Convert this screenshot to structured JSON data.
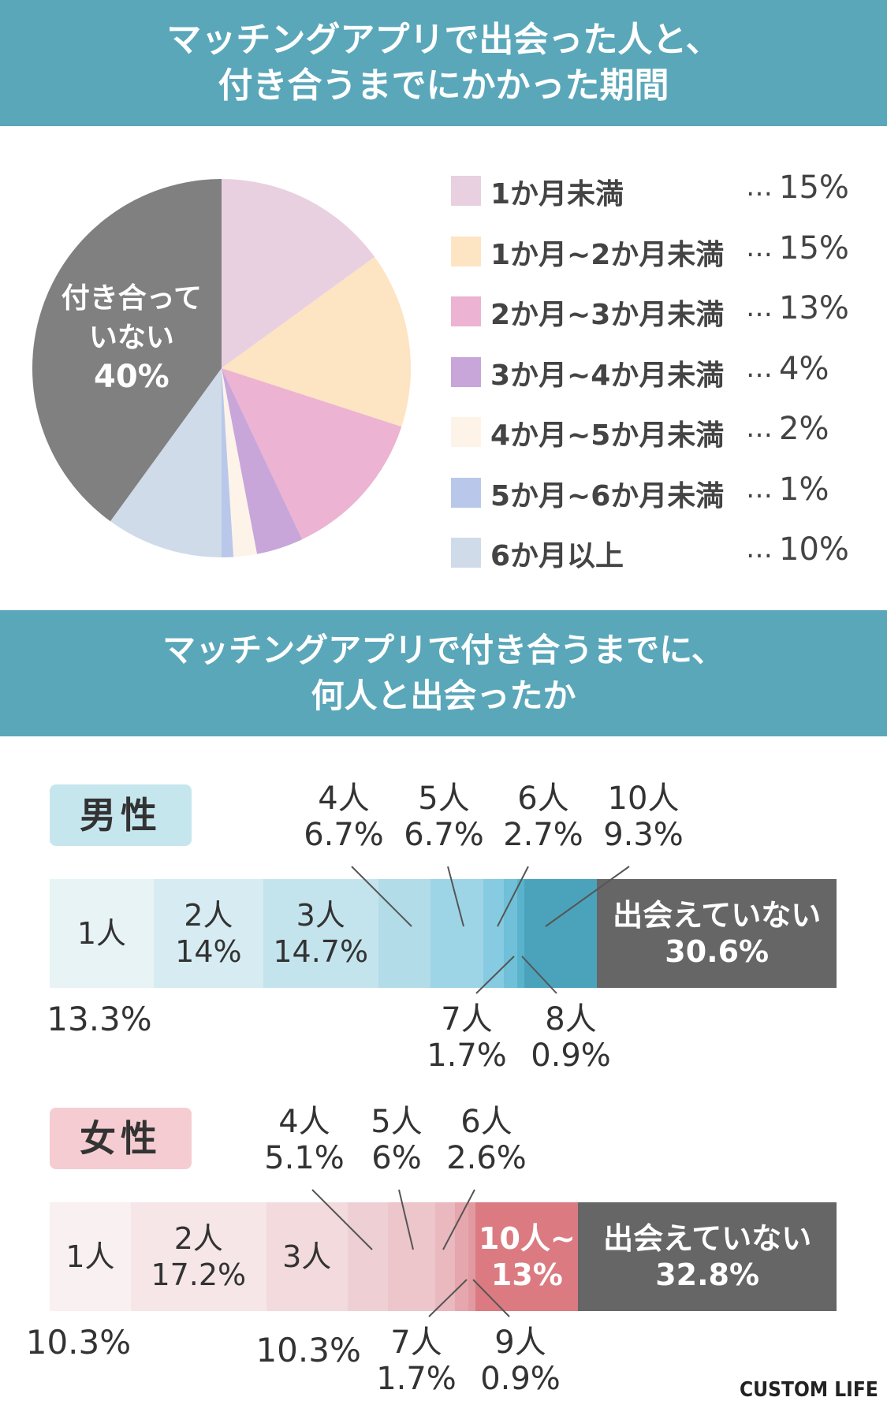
{
  "chart_data": [
    {
      "type": "pie",
      "title_lines": [
        "マッチングアプリで出会った人と、",
        "付き合うまでにかかった期間"
      ],
      "slices": [
        {
          "label": "1か月未満",
          "value": 15,
          "value_label": "15%",
          "color": "#e8d0e0"
        },
        {
          "label": "1か月~2か月未満",
          "value": 15,
          "value_label": "15%",
          "color": "#fde4c2"
        },
        {
          "label": "2か月~3か月未満",
          "value": 13,
          "value_label": "13%",
          "color": "#ecb3d2"
        },
        {
          "label": "3か月~4か月未満",
          "value": 4,
          "value_label": "4%",
          "color": "#c8a6da"
        },
        {
          "label": "4か月~5か月未満",
          "value": 2,
          "value_label": "2%",
          "color": "#fdf3e8"
        },
        {
          "label": "5か月~6か月未満",
          "value": 1,
          "value_label": "1%",
          "color": "#b9c8ea"
        },
        {
          "label": "6か月以上",
          "value": 10,
          "value_label": "10%",
          "color": "#cfdbe8"
        },
        {
          "label": "付き合っていない",
          "value": 40,
          "value_label": "40%",
          "color": "#808080",
          "inside_lines": [
            "付き合って",
            "いない",
            "40%"
          ]
        }
      ],
      "legend_dots": "…"
    },
    {
      "type": "bar",
      "orientation": "stacked-horizontal",
      "title_lines": [
        "マッチングアプリで付き合うまでに、",
        "何人と出会ったか"
      ],
      "groups": [
        {
          "name": "男性",
          "segments": [
            {
              "label": "1人",
              "value": 13.3,
              "value_label": "13.3%",
              "color": "#e8f3f6"
            },
            {
              "label": "2人",
              "value": 14,
              "value_label": "14%",
              "color": "#d6ecf2"
            },
            {
              "label": "3人",
              "value": 14.7,
              "value_label": "14.7%",
              "color": "#c4e4ed"
            },
            {
              "label": "4人",
              "value": 6.7,
              "value_label": "6.7%",
              "color": "#b2dce8"
            },
            {
              "label": "5人",
              "value": 6.7,
              "value_label": "6.7%",
              "color": "#9dd5e6"
            },
            {
              "label": "6人",
              "value": 2.7,
              "value_label": "2.7%",
              "color": "#86cbe1"
            },
            {
              "label": "7人",
              "value": 1.7,
              "value_label": "1.7%",
              "color": "#6fc0d8"
            },
            {
              "label": "8人",
              "value": 0.9,
              "value_label": "0.9%",
              "color": "#5ab3cc"
            },
            {
              "label": "10人",
              "value": 9.3,
              "value_label": "9.3%",
              "color": "#4aa3bb"
            },
            {
              "label": "出会えていない",
              "value": 30.6,
              "value_label": "30.6%",
              "color": "#666666"
            }
          ]
        },
        {
          "name": "女性",
          "segments": [
            {
              "label": "1人",
              "value": 10.3,
              "value_label": "10.3%",
              "color": "#f9f0f1"
            },
            {
              "label": "2人",
              "value": 17.2,
              "value_label": "17.2%",
              "color": "#f6e6e8"
            },
            {
              "label": "3人",
              "value": 10.3,
              "value_label": "10.3%",
              "color": "#f2dadd"
            },
            {
              "label": "4人",
              "value": 5.1,
              "value_label": "5.1%",
              "color": "#eed0d4"
            },
            {
              "label": "5人",
              "value": 6,
              "value_label": "6%",
              "color": "#ecc6cb"
            },
            {
              "label": "6人",
              "value": 2.6,
              "value_label": "2.6%",
              "color": "#e9b9bf"
            },
            {
              "label": "7人",
              "value": 1.7,
              "value_label": "1.7%",
              "color": "#e6a6ad"
            },
            {
              "label": "9人",
              "value": 0.9,
              "value_label": "0.9%",
              "color": "#e29aa1"
            },
            {
              "label": "10人~",
              "value": 13,
              "value_label": "13%",
              "color": "#db7b81"
            },
            {
              "label": "出会えていない",
              "value": 32.8,
              "value_label": "32.8%",
              "color": "#666666"
            }
          ]
        }
      ]
    }
  ],
  "brand": "CUSTOM LIFE"
}
